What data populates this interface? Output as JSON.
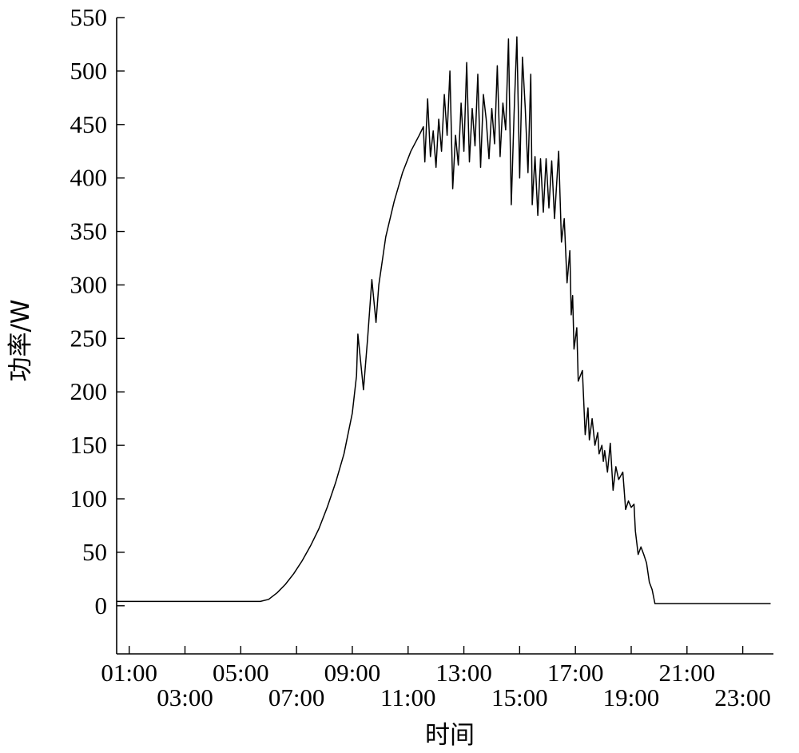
{
  "chart_data": {
    "type": "line",
    "xlabel": "时间",
    "ylabel": "功率/W",
    "ylim": [
      -45,
      550
    ],
    "yticks": [
      0,
      50,
      100,
      150,
      200,
      250,
      300,
      350,
      400,
      450,
      500,
      550
    ],
    "xlim": [
      0.55,
      24.1
    ],
    "xticks": [
      {
        "value": 1,
        "label": "01:00",
        "row": "top"
      },
      {
        "value": 3,
        "label": "03:00",
        "row": "bottom"
      },
      {
        "value": 5,
        "label": "05:00",
        "row": "top"
      },
      {
        "value": 7,
        "label": "07:00",
        "row": "bottom"
      },
      {
        "value": 9,
        "label": "09:00",
        "row": "top"
      },
      {
        "value": 11,
        "label": "11:00",
        "row": "bottom"
      },
      {
        "value": 13,
        "label": "13:00",
        "row": "top"
      },
      {
        "value": 15,
        "label": "15:00",
        "row": "bottom"
      },
      {
        "value": 17,
        "label": "17:00",
        "row": "top"
      },
      {
        "value": 19,
        "label": "19:00",
        "row": "bottom"
      },
      {
        "value": 21,
        "label": "21:00",
        "row": "top"
      },
      {
        "value": 23,
        "label": "23:00",
        "row": "bottom"
      }
    ],
    "grid": false,
    "legend": "none",
    "series": [
      {
        "color": "#000000",
        "points": [
          [
            0.55,
            4
          ],
          [
            2,
            4
          ],
          [
            4,
            4
          ],
          [
            5.7,
            4
          ],
          [
            6.0,
            6
          ],
          [
            6.3,
            12
          ],
          [
            6.6,
            20
          ],
          [
            6.9,
            30
          ],
          [
            7.2,
            42
          ],
          [
            7.5,
            56
          ],
          [
            7.8,
            72
          ],
          [
            8.1,
            92
          ],
          [
            8.4,
            115
          ],
          [
            8.7,
            142
          ],
          [
            9.0,
            180
          ],
          [
            9.15,
            215
          ],
          [
            9.2,
            254
          ],
          [
            9.4,
            202
          ],
          [
            9.55,
            250
          ],
          [
            9.7,
            305
          ],
          [
            9.85,
            265
          ],
          [
            9.95,
            300
          ],
          [
            10.2,
            345
          ],
          [
            10.5,
            378
          ],
          [
            10.8,
            405
          ],
          [
            11.1,
            425
          ],
          [
            11.4,
            440
          ],
          [
            11.55,
            448
          ],
          [
            11.6,
            415
          ],
          [
            11.7,
            474
          ],
          [
            11.8,
            420
          ],
          [
            11.9,
            444
          ],
          [
            12.0,
            410
          ],
          [
            12.1,
            455
          ],
          [
            12.2,
            425
          ],
          [
            12.3,
            478
          ],
          [
            12.4,
            440
          ],
          [
            12.5,
            500
          ],
          [
            12.6,
            390
          ],
          [
            12.7,
            440
          ],
          [
            12.8,
            412
          ],
          [
            12.9,
            470
          ],
          [
            13.0,
            425
          ],
          [
            13.1,
            508
          ],
          [
            13.2,
            415
          ],
          [
            13.3,
            465
          ],
          [
            13.4,
            430
          ],
          [
            13.5,
            497
          ],
          [
            13.6,
            410
          ],
          [
            13.7,
            478
          ],
          [
            13.8,
            455
          ],
          [
            13.9,
            418
          ],
          [
            14.0,
            465
          ],
          [
            14.1,
            432
          ],
          [
            14.2,
            505
          ],
          [
            14.3,
            420
          ],
          [
            14.4,
            470
          ],
          [
            14.5,
            445
          ],
          [
            14.6,
            530
          ],
          [
            14.7,
            375
          ],
          [
            14.8,
            460
          ],
          [
            14.9,
            532
          ],
          [
            15.0,
            400
          ],
          [
            15.1,
            513
          ],
          [
            15.2,
            465
          ],
          [
            15.3,
            405
          ],
          [
            15.4,
            497
          ],
          [
            15.45,
            375
          ],
          [
            15.55,
            420
          ],
          [
            15.65,
            365
          ],
          [
            15.75,
            418
          ],
          [
            15.85,
            368
          ],
          [
            15.95,
            418
          ],
          [
            16.05,
            372
          ],
          [
            16.15,
            416
          ],
          [
            16.25,
            362
          ],
          [
            16.4,
            425
          ],
          [
            16.5,
            340
          ],
          [
            16.6,
            362
          ],
          [
            16.7,
            302
          ],
          [
            16.8,
            332
          ],
          [
            16.85,
            272
          ],
          [
            16.9,
            290
          ],
          [
            16.95,
            240
          ],
          [
            17.05,
            260
          ],
          [
            17.1,
            210
          ],
          [
            17.25,
            220
          ],
          [
            17.35,
            160
          ],
          [
            17.45,
            185
          ],
          [
            17.5,
            155
          ],
          [
            17.6,
            175
          ],
          [
            17.7,
            150
          ],
          [
            17.8,
            162
          ],
          [
            17.85,
            142
          ],
          [
            17.95,
            150
          ],
          [
            18.0,
            135
          ],
          [
            18.05,
            145
          ],
          [
            18.15,
            125
          ],
          [
            18.25,
            152
          ],
          [
            18.35,
            108
          ],
          [
            18.45,
            130
          ],
          [
            18.55,
            118
          ],
          [
            18.7,
            125
          ],
          [
            18.8,
            90
          ],
          [
            18.9,
            98
          ],
          [
            19.0,
            92
          ],
          [
            19.1,
            95
          ],
          [
            19.15,
            70
          ],
          [
            19.25,
            48
          ],
          [
            19.35,
            55
          ],
          [
            19.45,
            48
          ],
          [
            19.55,
            40
          ],
          [
            19.65,
            22
          ],
          [
            19.75,
            15
          ],
          [
            19.85,
            2
          ],
          [
            20.2,
            2
          ],
          [
            22,
            2
          ],
          [
            24.0,
            2
          ]
        ]
      }
    ]
  }
}
